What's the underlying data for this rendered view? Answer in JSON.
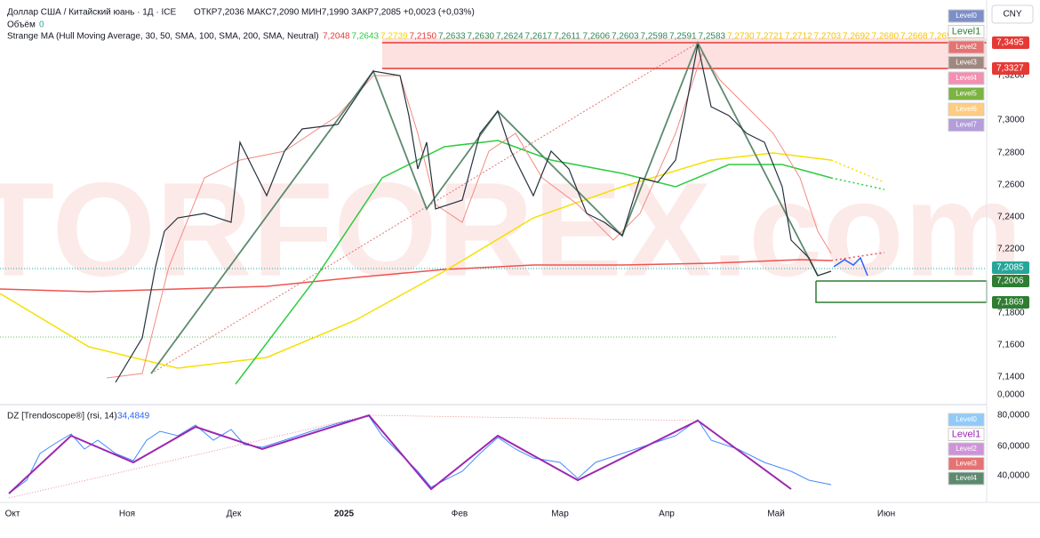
{
  "header": {
    "symbol": "Доллар США / Китайский юань · 1Д · ICE",
    "ohlc": "ОТКР7,2036 МАКС7,2090 МИН7,1990 ЗАКР7,2085 +0,0023 (+0,03%)",
    "volume_label": "Объём",
    "volume_value": "0",
    "indicator": "Strange MA (Hull Moving Average, 30, 50, SMA, 100, SMA, 200, SMA, Neutral)",
    "indicator_values": [
      {
        "text": "7,2048",
        "color": "#e53935"
      },
      {
        "text": "7,2643",
        "color": "#2ecc40"
      },
      {
        "text": "7,2739",
        "color": "#f5d400"
      },
      {
        "text": "7,2150",
        "color": "#e53935"
      },
      {
        "text": "7,2633",
        "color": "#2e8b57"
      },
      {
        "text": "7,2630",
        "color": "#2e8b57"
      },
      {
        "text": "7,2624",
        "color": "#2e8b57"
      },
      {
        "text": "7,2617",
        "color": "#2e8b57"
      },
      {
        "text": "7,2611",
        "color": "#2e8b57"
      },
      {
        "text": "7,2606",
        "color": "#2e8b57"
      },
      {
        "text": "7,2603",
        "color": "#2e8b57"
      },
      {
        "text": "7,2598",
        "color": "#2e8b57"
      },
      {
        "text": "7,2591",
        "color": "#2e8b57"
      },
      {
        "text": "7,2583",
        "color": "#2e8b57"
      },
      {
        "text": "7,2730",
        "color": "#f5c400"
      },
      {
        "text": "7,2721",
        "color": "#f5c400"
      },
      {
        "text": "7,2712",
        "color": "#f5c400"
      },
      {
        "text": "7,2703",
        "color": "#f5c400"
      },
      {
        "text": "7,2692",
        "color": "#f5c400"
      },
      {
        "text": "7,2680",
        "color": "#f5c400"
      },
      {
        "text": "7,2668",
        "color": "#f5c400"
      },
      {
        "text": "7,2656",
        "color": "#f5c400"
      }
    ],
    "currency": "CNY"
  },
  "levels_top": [
    {
      "text": "Level0",
      "color": "#7e8fc7"
    },
    {
      "text": "Level1",
      "color": "#ffffff"
    },
    {
      "text": "Level2",
      "color": "#e57373"
    },
    {
      "text": "Level3",
      "color": "#a1887f"
    },
    {
      "text": "Level4",
      "color": "#f48fb1"
    },
    {
      "text": "Level5",
      "color": "#7cb342"
    },
    {
      "text": "Level6",
      "color": "#ffcc80"
    },
    {
      "text": "Level7",
      "color": "#b39ddb"
    }
  ],
  "price_axis": [
    "7,3400",
    "7,3200",
    "7,3000",
    "7,2800",
    "7,2600",
    "7,2400",
    "7,2200",
    "7,1800",
    "7,1600",
    "7,1400",
    "0,0000"
  ],
  "price_badges": [
    {
      "text": "7,3495",
      "color": "#e53935"
    },
    {
      "text": "7,3327",
      "color": "#e53935"
    },
    {
      "text": "7,2085",
      "color": "#26a69a"
    },
    {
      "text": "7,2006",
      "color": "#2e7d32"
    },
    {
      "text": "7,1869",
      "color": "#2e7d32"
    }
  ],
  "oscillator": {
    "title": "DZ [Trendoscope®] (rsi, 14)",
    "value": "34,4849",
    "axis": [
      "80,0000",
      "60,0000",
      "40,0000"
    ]
  },
  "levels_bottom": [
    {
      "text": "Level0",
      "color": "#90caf9"
    },
    {
      "text": "Level1",
      "color": "#ffffff"
    },
    {
      "text": "Level2",
      "color": "#ce93d8"
    },
    {
      "text": "Level3",
      "color": "#e57373"
    },
    {
      "text": "Level4",
      "color": "#5d8a6e"
    }
  ],
  "time_axis": [
    "Окт",
    "Ноя",
    "Дек",
    "2025",
    "Фев",
    "Мар",
    "Апр",
    "Май",
    "Июн"
  ],
  "watermark": "TORFOREX.com"
}
